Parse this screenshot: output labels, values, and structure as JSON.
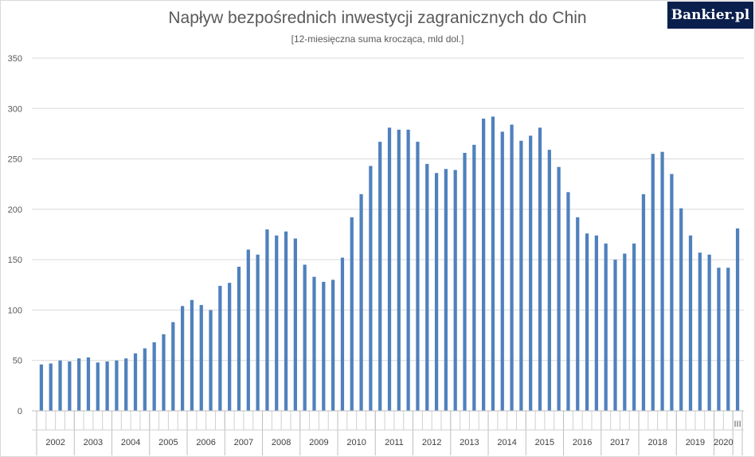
{
  "title": "Napływ bezpośrednich inwestycji zagranicznych do Chin",
  "subtitle": "[12-miesięczna suma krocząca, mld dol.]",
  "logo_text": "Bankier.pl",
  "colors": {
    "bar": "#4f81bd",
    "grid": "#d9d9d9",
    "text": "#595959"
  },
  "chart_data": {
    "type": "bar",
    "title": "Napływ bezpośrednich inwestycji zagranicznych do Chin",
    "subtitle": "[12-miesięczna suma krocząca, mld dol.]",
    "xlabel": "",
    "ylabel": "",
    "ylim": [
      0,
      350
    ],
    "yticks": [
      0,
      50,
      100,
      150,
      200,
      250,
      300,
      350
    ],
    "grid": true,
    "legend": "none",
    "year_labels": [
      "2002",
      "2003",
      "2004",
      "2005",
      "2006",
      "2007",
      "2008",
      "2009",
      "2010",
      "2011",
      "2012",
      "2013",
      "2014",
      "2015",
      "2016",
      "2017",
      "2018",
      "2019",
      "2020"
    ],
    "year_bar_counts": [
      4,
      4,
      4,
      4,
      4,
      4,
      4,
      4,
      4,
      4,
      4,
      4,
      4,
      4,
      4,
      4,
      4,
      4,
      2
    ],
    "extra_quarter_label": "III",
    "values": [
      46,
      47,
      50,
      49,
      52,
      53,
      48,
      49,
      50,
      52,
      57,
      62,
      68,
      76,
      88,
      104,
      110,
      105,
      100,
      124,
      127,
      143,
      160,
      155,
      180,
      174,
      178,
      171,
      145,
      133,
      128,
      130,
      152,
      192,
      215,
      243,
      267,
      281,
      279,
      279,
      267,
      245,
      236,
      240,
      239,
      256,
      264,
      290,
      292,
      277,
      284,
      268,
      273,
      281,
      259,
      242,
      217,
      192,
      176,
      174,
      166,
      150,
      156,
      166,
      215,
      255,
      257,
      235,
      201,
      174,
      157,
      155,
      142,
      142,
      181
    ]
  }
}
